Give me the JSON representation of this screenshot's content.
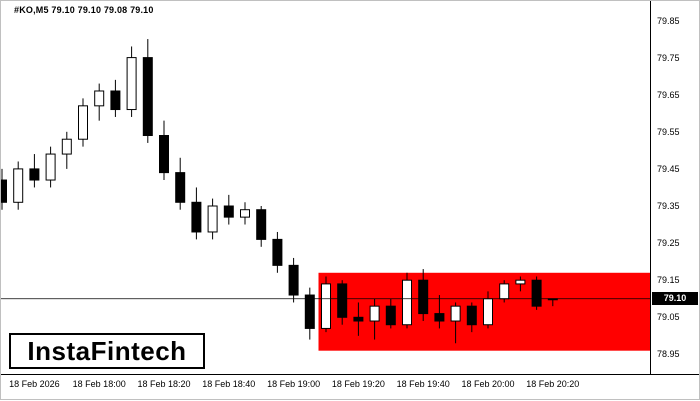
{
  "header": {
    "ohlc_line": "#KO,M5 79.10 79.10 79.08 79.10"
  },
  "logo": {
    "text": "InstaFintech"
  },
  "price_axis": {
    "current_price_tag": "79.10"
  },
  "chart_data": {
    "type": "candlestick",
    "symbol": "#KO",
    "timeframe": "M5",
    "title": "#KO,M5 79.10 79.10 79.08 79.10",
    "current_candle": {
      "open": 79.1,
      "high": 79.1,
      "low": 79.08,
      "close": 79.1
    },
    "price_line": 79.1,
    "y_axis": {
      "ticks": [
        "79.85",
        "79.75",
        "79.65",
        "79.55",
        "79.45",
        "79.35",
        "79.25",
        "79.15",
        "79.05",
        "78.95"
      ]
    },
    "x_axis": {
      "labels": [
        {
          "index": 2,
          "label": "18 Feb 2026"
        },
        {
          "index": 6,
          "label": "18 Feb 18:00"
        },
        {
          "index": 10,
          "label": "18 Feb 18:20"
        },
        {
          "index": 14,
          "label": "18 Feb 18:40"
        },
        {
          "index": 18,
          "label": "18 Feb 19:00"
        },
        {
          "index": 22,
          "label": "18 Feb 19:20"
        },
        {
          "index": 26,
          "label": "18 Feb 19:40"
        },
        {
          "index": 30,
          "label": "18 Feb 20:00"
        },
        {
          "index": 34,
          "label": "18 Feb 20:20"
        }
      ]
    },
    "zone": {
      "price_top": 79.17,
      "price_bottom": 78.96,
      "start_index": 20,
      "color": "#FF0000"
    },
    "colors": {
      "bull_fill": "#FFFFFF",
      "bear_fill": "#000000",
      "outline": "#000000",
      "background": "#FFFFFF"
    },
    "candles": [
      {
        "t": "17:30",
        "o": 79.42,
        "h": 79.45,
        "l": 79.34,
        "c": 79.36
      },
      {
        "t": "17:35",
        "o": 79.36,
        "h": 79.47,
        "l": 79.34,
        "c": 79.45
      },
      {
        "t": "17:40",
        "o": 79.45,
        "h": 79.49,
        "l": 79.4,
        "c": 79.42
      },
      {
        "t": "17:45",
        "o": 79.42,
        "h": 79.51,
        "l": 79.4,
        "c": 79.49
      },
      {
        "t": "17:50",
        "o": 79.49,
        "h": 79.55,
        "l": 79.45,
        "c": 79.53
      },
      {
        "t": "17:55",
        "o": 79.53,
        "h": 79.64,
        "l": 79.51,
        "c": 79.62
      },
      {
        "t": "18:00",
        "o": 79.62,
        "h": 79.68,
        "l": 79.58,
        "c": 79.66
      },
      {
        "t": "18:05",
        "o": 79.66,
        "h": 79.69,
        "l": 79.59,
        "c": 79.61
      },
      {
        "t": "18:10",
        "o": 79.61,
        "h": 79.78,
        "l": 79.59,
        "c": 79.75
      },
      {
        "t": "18:15",
        "o": 79.75,
        "h": 79.8,
        "l": 79.52,
        "c": 79.54
      },
      {
        "t": "18:20",
        "o": 79.54,
        "h": 79.58,
        "l": 79.42,
        "c": 79.44
      },
      {
        "t": "18:25",
        "o": 79.44,
        "h": 79.48,
        "l": 79.34,
        "c": 79.36
      },
      {
        "t": "18:30",
        "o": 79.36,
        "h": 79.4,
        "l": 79.26,
        "c": 79.28
      },
      {
        "t": "18:35",
        "o": 79.28,
        "h": 79.37,
        "l": 79.26,
        "c": 79.35
      },
      {
        "t": "18:40",
        "o": 79.35,
        "h": 79.38,
        "l": 79.3,
        "c": 79.32
      },
      {
        "t": "18:45",
        "o": 79.32,
        "h": 79.36,
        "l": 79.3,
        "c": 79.34
      },
      {
        "t": "18:50",
        "o": 79.34,
        "h": 79.35,
        "l": 79.24,
        "c": 79.26
      },
      {
        "t": "18:55",
        "o": 79.26,
        "h": 79.28,
        "l": 79.17,
        "c": 79.19
      },
      {
        "t": "19:00",
        "o": 79.19,
        "h": 79.21,
        "l": 79.09,
        "c": 79.11
      },
      {
        "t": "19:05",
        "o": 79.11,
        "h": 79.13,
        "l": 78.99,
        "c": 79.02
      },
      {
        "t": "19:10",
        "o": 79.02,
        "h": 79.16,
        "l": 79.01,
        "c": 79.14
      },
      {
        "t": "19:15",
        "o": 79.14,
        "h": 79.15,
        "l": 79.03,
        "c": 79.05
      },
      {
        "t": "19:20",
        "o": 79.05,
        "h": 79.09,
        "l": 79.0,
        "c": 79.04
      },
      {
        "t": "19:25",
        "o": 79.04,
        "h": 79.1,
        "l": 78.99,
        "c": 79.08
      },
      {
        "t": "19:30",
        "o": 79.08,
        "h": 79.1,
        "l": 79.02,
        "c": 79.03
      },
      {
        "t": "19:35",
        "o": 79.03,
        "h": 79.17,
        "l": 79.02,
        "c": 79.15
      },
      {
        "t": "19:40",
        "o": 79.15,
        "h": 79.18,
        "l": 79.04,
        "c": 79.06
      },
      {
        "t": "19:45",
        "o": 79.06,
        "h": 79.11,
        "l": 79.02,
        "c": 79.04
      },
      {
        "t": "19:50",
        "o": 79.04,
        "h": 79.09,
        "l": 78.98,
        "c": 79.08
      },
      {
        "t": "19:55",
        "o": 79.08,
        "h": 79.09,
        "l": 79.01,
        "c": 79.03
      },
      {
        "t": "20:00",
        "o": 79.03,
        "h": 79.12,
        "l": 79.02,
        "c": 79.1
      },
      {
        "t": "20:05",
        "o": 79.1,
        "h": 79.15,
        "l": 79.09,
        "c": 79.14
      },
      {
        "t": "20:10",
        "o": 79.14,
        "h": 79.16,
        "l": 79.12,
        "c": 79.15
      },
      {
        "t": "20:15",
        "o": 79.15,
        "h": 79.16,
        "l": 79.07,
        "c": 79.08
      },
      {
        "t": "20:20",
        "o": 79.1,
        "h": 79.1,
        "l": 79.08,
        "c": 79.1
      }
    ]
  }
}
